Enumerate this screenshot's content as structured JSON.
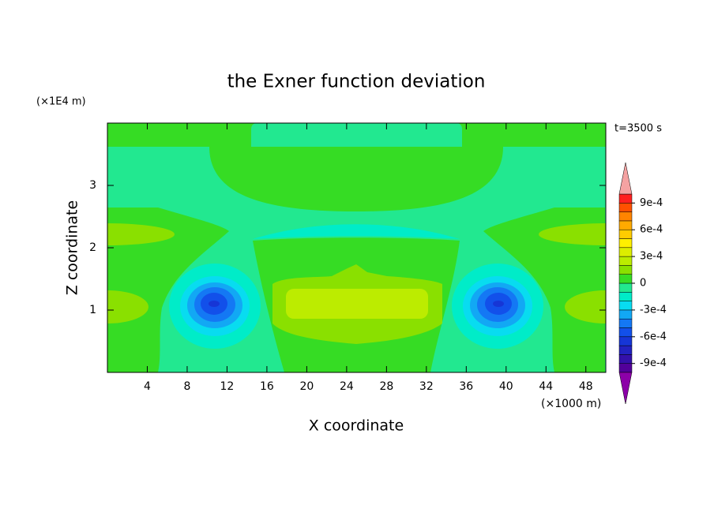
{
  "chart_data": {
    "type": "contour",
    "title": "the Exner function deviation",
    "time_label": "t=3500 s",
    "xlabel": "X coordinate",
    "ylabel": "Z coordinate",
    "x_unit_label": "(×1000 m)",
    "y_unit_label": "(×1E4 m)",
    "xlim": [
      0,
      50
    ],
    "xticks": [
      4,
      8,
      12,
      16,
      20,
      24,
      28,
      32,
      36,
      40,
      44,
      48
    ],
    "ylim": [
      0,
      4
    ],
    "yticks": [
      1,
      2,
      3
    ],
    "colorbar": {
      "clim": [
        -0.001,
        0.001
      ],
      "ticks": [
        {
          "value": 0.0009,
          "label": "9e-4"
        },
        {
          "value": 0.0006,
          "label": "6e-4"
        },
        {
          "value": 0.0003,
          "label": "3e-4"
        },
        0,
        {
          "value": -0.0003,
          "label": "-3e-4"
        },
        {
          "value": -0.0006,
          "label": "-6e-4"
        },
        {
          "value": -0.0009,
          "label": "-9e-4"
        }
      ],
      "colors": [
        "#52009a",
        "#3410aa",
        "#2222c0",
        "#1636d6",
        "#1250ea",
        "#1478f4",
        "#12a8f4",
        "#08dcf0",
        "#00ecc8",
        "#22e890",
        "#36dc24",
        "#8ae000",
        "#bcec00",
        "#dcee00",
        "#fff000",
        "#ffcc00",
        "#ffaa00",
        "#ff8400",
        "#ff5000",
        "#ff2020"
      ],
      "extend_colors": [
        "#8c00a8",
        "#f4a2a2"
      ]
    }
  }
}
